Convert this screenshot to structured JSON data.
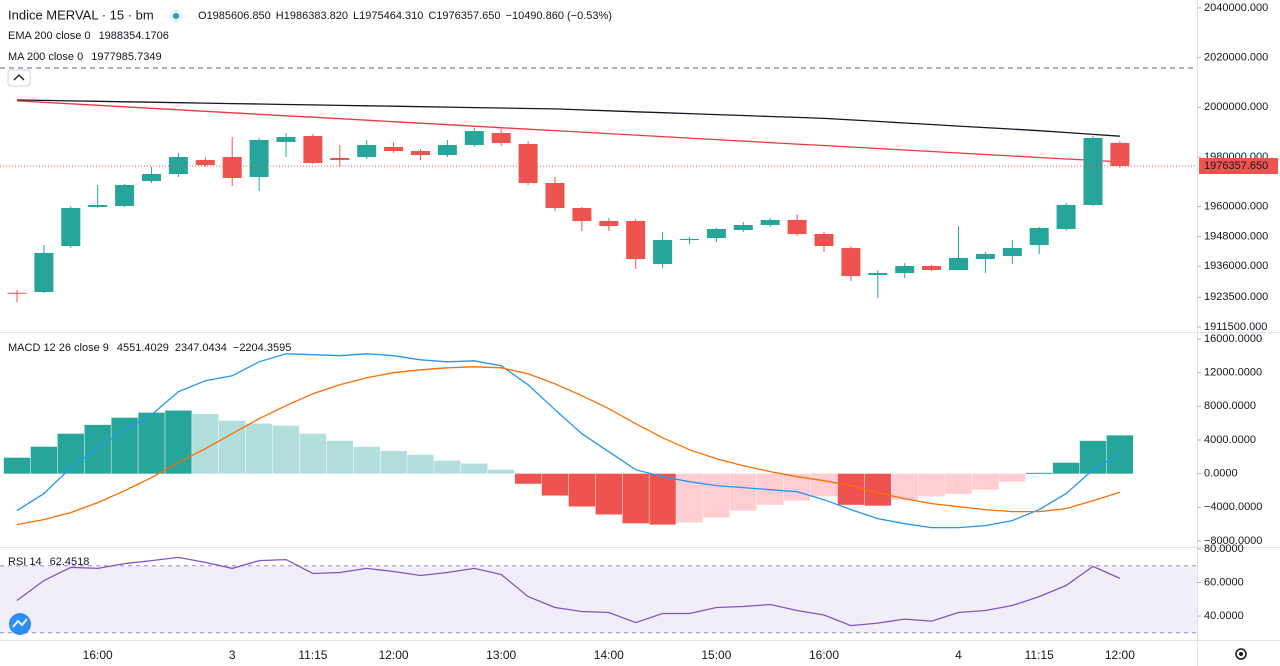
{
  "header": {
    "title": "Indice MERVAL · 15 · bm",
    "ohlc": [
      {
        "label": "O",
        "value": "1985606.850"
      },
      {
        "label": "H",
        "value": "1986383.820"
      },
      {
        "label": "L",
        "value": "1975464.310"
      },
      {
        "label": "C",
        "value": "1976357.650"
      }
    ],
    "change": "−10490.860 (−0.53%)",
    "color": "#ef5350"
  },
  "chart_data": [
    {
      "type": "candlestick",
      "categories": [
        null,
        null,
        null,
        "16:00",
        null,
        null,
        null,
        null,
        "3",
        null,
        null,
        "11:15",
        null,
        null,
        "12:00",
        null,
        null,
        null,
        "13:00",
        null,
        null,
        null,
        "14:00",
        null,
        null,
        null,
        "15:00",
        null,
        null,
        null,
        "16:00",
        null,
        null,
        null,
        null,
        "4",
        null,
        null,
        "11:15",
        null,
        null,
        "12:00"
      ],
      "open": [
        1925300,
        1925600,
        1944130,
        1959840,
        1960250,
        1970310,
        1973130,
        1978770,
        1979970,
        1971920,
        1986010,
        1988430,
        1979570,
        1979970,
        1984000,
        1982390,
        1980780,
        1984810,
        1989640,
        1985210,
        1969510,
        1959440,
        1954200,
        1954200,
        1936870,
        1946550,
        1947350,
        1950580,
        1952590,
        1954610,
        1948960,
        1943320,
        1932440,
        1933250,
        1936070,
        1934460,
        1938890,
        1940100,
        1944530,
        1950980,
        1960650,
        1985606.85
      ],
      "high": [
        1926400,
        1944530,
        1960250,
        1968700,
        1969110,
        1975950,
        1981580,
        1979970,
        1988030,
        1987620,
        1989640,
        1989230,
        1984810,
        1986820,
        1986010,
        1983190,
        1986820,
        1991650,
        1991250,
        1986420,
        1971920,
        1959840,
        1955410,
        1955010,
        1949770,
        1947760,
        1951380,
        1953800,
        1955410,
        1957020,
        1949770,
        1944130,
        1934460,
        1937280,
        1936470,
        1952190,
        1941710,
        1946550,
        1951780,
        1961450,
        1988430,
        1986383.82
      ],
      "low": [
        1921570,
        1925200,
        1943320,
        1959440,
        1959840,
        1969510,
        1971920,
        1975950,
        1968300,
        1966290,
        1979970,
        1977160,
        1975950,
        1979170,
        1981580,
        1978770,
        1979970,
        1984000,
        1984400,
        1968700,
        1958230,
        1950170,
        1950170,
        1934860,
        1935260,
        1944940,
        1945740,
        1949770,
        1951780,
        1948160,
        1941710,
        1930030,
        1923180,
        1931240,
        1934050,
        1934460,
        1933250,
        1936870,
        1940900,
        1950170,
        1960250,
        1975464.31
      ],
      "close": [
        1925100,
        1941310,
        1959440,
        1960650,
        1968700,
        1973130,
        1979970,
        1976760,
        1971520,
        1986820,
        1988030,
        1977560,
        1978770,
        1984810,
        1982390,
        1980780,
        1984810,
        1990440,
        1985610,
        1969510,
        1959440,
        1954200,
        1952190,
        1938890,
        1946550,
        1946950,
        1950980,
        1952590,
        1954610,
        1948960,
        1944130,
        1932040,
        1933250,
        1936070,
        1934460,
        1939290,
        1940900,
        1943320,
        1951380,
        1960650,
        1987620,
        1976357.65
      ],
      "up_color": "#26a69a",
      "down_color": "#ef5350",
      "ylim": [
        1909500,
        2043200
      ],
      "yticks": [
        {
          "value": 2040000,
          "label": "2040000.000"
        },
        {
          "value": 2020000,
          "label": "2020000.000"
        },
        {
          "value": 2000000,
          "label": "2000000.000"
        },
        {
          "value": 1980000,
          "label": "1980000.000"
        },
        {
          "value": 1960000,
          "label": "1960000.000"
        },
        {
          "value": 1948000,
          "label": "1948000.000"
        },
        {
          "value": 1936000,
          "label": "1936000.000"
        },
        {
          "value": 1923500,
          "label": "1923500.000"
        },
        {
          "value": 1911500,
          "label": "1911500.000"
        }
      ],
      "price_tag": "1976357.650",
      "series": [
        {
          "name": "EMA 200 close 0",
          "value_label": "1988354.1706",
          "color": "#131722",
          "values": [
            2002933,
            2002753,
            2002573,
            2002393,
            2002213,
            2002033,
            2001853,
            2001673,
            2001493,
            2001313,
            2001133,
            2000953,
            2000773,
            2000593,
            2000413,
            2000233,
            2000053,
            1999873,
            1999693,
            1999513,
            1999333,
            1998953,
            1998573,
            1998193,
            1997813,
            1997433,
            1997053,
            1996673,
            1996293,
            1995913,
            1995533,
            1994913,
            1994293,
            1993673,
            1993053,
            1992433,
            1991813,
            1991193,
            1990573,
            1989833,
            1989093,
            1988354.1706
          ]
        },
        {
          "name": "MA 200 close 0",
          "value_label": "1977985.7349",
          "color": "#f23645",
          "values": [
            2002586,
            2001986,
            2001386,
            2000786,
            2000186,
            1999586,
            1998986,
            1998386,
            1997786,
            1997186,
            1996586,
            1995986,
            1995386,
            1994786,
            1994186,
            1993586,
            1992986,
            1992386,
            1991786,
            1991186,
            1990586,
            1989986,
            1989386,
            1988786,
            1988186,
            1987586,
            1986986,
            1986386,
            1985786,
            1985186,
            1984586,
            1983986,
            1983386,
            1982786,
            1982186,
            1981586,
            1980986,
            1980386,
            1979786,
            1979186,
            1978586,
            1977985.7349
          ]
        }
      ]
    },
    {
      "type": "macd",
      "name": "MACD 12 26 close 9",
      "histogram": {
        "value_label": "4551.4029",
        "color": "#26a69a",
        "colors": {
          "up_strong": "#26a69a",
          "up_weak": "#b2dfdb",
          "down_strong": "#ef5350",
          "down_weak": "#ffcdd2"
        },
        "values": [
          1900,
          3200,
          4750,
          5800,
          6650,
          7250,
          7500,
          7100,
          6300,
          5950,
          5700,
          4750,
          3900,
          3200,
          2700,
          2250,
          1550,
          1200,
          470,
          -1200,
          -2600,
          -3900,
          -4850,
          -5900,
          -6050,
          -5800,
          -5200,
          -4400,
          -3700,
          -3200,
          -2700,
          -3700,
          -3800,
          -3100,
          -2700,
          -2400,
          -1900,
          -950,
          100,
          1300,
          3900,
          4551.4029
        ]
      },
      "series": [
        {
          "value_label": "2347.0434",
          "color": "#2196f3",
          "values": [
            -4390,
            -2370,
            710,
            3090,
            5220,
            7000,
            9730,
            11040,
            11630,
            13290,
            14240,
            14130,
            14010,
            14240,
            14010,
            13530,
            13290,
            13410,
            12820,
            10560,
            7600,
            4750,
            2610,
            470,
            -360,
            -950,
            -1420,
            -1660,
            -1900,
            -2140,
            -3090,
            -4270,
            -5340,
            -5940,
            -6410,
            -6410,
            -6170,
            -5580,
            -4270,
            -2370,
            470,
            2347.0434
          ]
        },
        {
          "value_label": "−2204.3595",
          "color": "#ff6d00",
          "values": [
            -6050,
            -5460,
            -4630,
            -3440,
            -2020,
            -470,
            1310,
            2970,
            4750,
            6530,
            8070,
            9500,
            10560,
            11400,
            11990,
            12340,
            12580,
            12700,
            12580,
            11870,
            10680,
            9260,
            7720,
            5940,
            4270,
            2850,
            1780,
            950,
            240,
            -360,
            -830,
            -1420,
            -2260,
            -2970,
            -3560,
            -3920,
            -4270,
            -4510,
            -4510,
            -4150,
            -3200,
            -2204.3595
          ]
        }
      ],
      "ylim": [
        -8712,
        16712
      ],
      "yticks": [
        {
          "value": 16000,
          "label": "16000.0000"
        },
        {
          "value": 12000,
          "label": "12000.0000"
        },
        {
          "value": 8000,
          "label": "8000.0000"
        },
        {
          "value": 4000,
          "label": "4000.0000"
        },
        {
          "value": 0,
          "label": "0.0000"
        },
        {
          "value": -4000,
          "label": "−4000.0000"
        },
        {
          "value": -8000,
          "label": "−8000.0000"
        }
      ]
    },
    {
      "type": "line",
      "name": "RSI 14",
      "series": [
        {
          "value_label": "62.4518",
          "color": "#7e57c2",
          "values": [
            49.3,
            61.2,
            69,
            68.4,
            71.3,
            73.1,
            75,
            72,
            68.4,
            73.1,
            73.7,
            65.4,
            66,
            68.4,
            66.6,
            64.2,
            66,
            68.4,
            64.8,
            51.6,
            45.1,
            42.7,
            42.1,
            36.1,
            41.5,
            41.5,
            45.1,
            45.7,
            46.9,
            43.3,
            40.6,
            34.3,
            35.8,
            38.2,
            37,
            42.1,
            43.3,
            46.3,
            51.6,
            58.2,
            69.6,
            62.4518
          ]
        }
      ],
      "band": [
        30,
        70
      ],
      "band_color": "#7e57c2",
      "ylim": [
        25.7,
        80.6
      ],
      "yticks": [
        {
          "value": 80,
          "label": "80.0000"
        },
        {
          "value": 60,
          "label": "60.0000"
        },
        {
          "value": 40,
          "label": "40.0000"
        }
      ]
    }
  ]
}
